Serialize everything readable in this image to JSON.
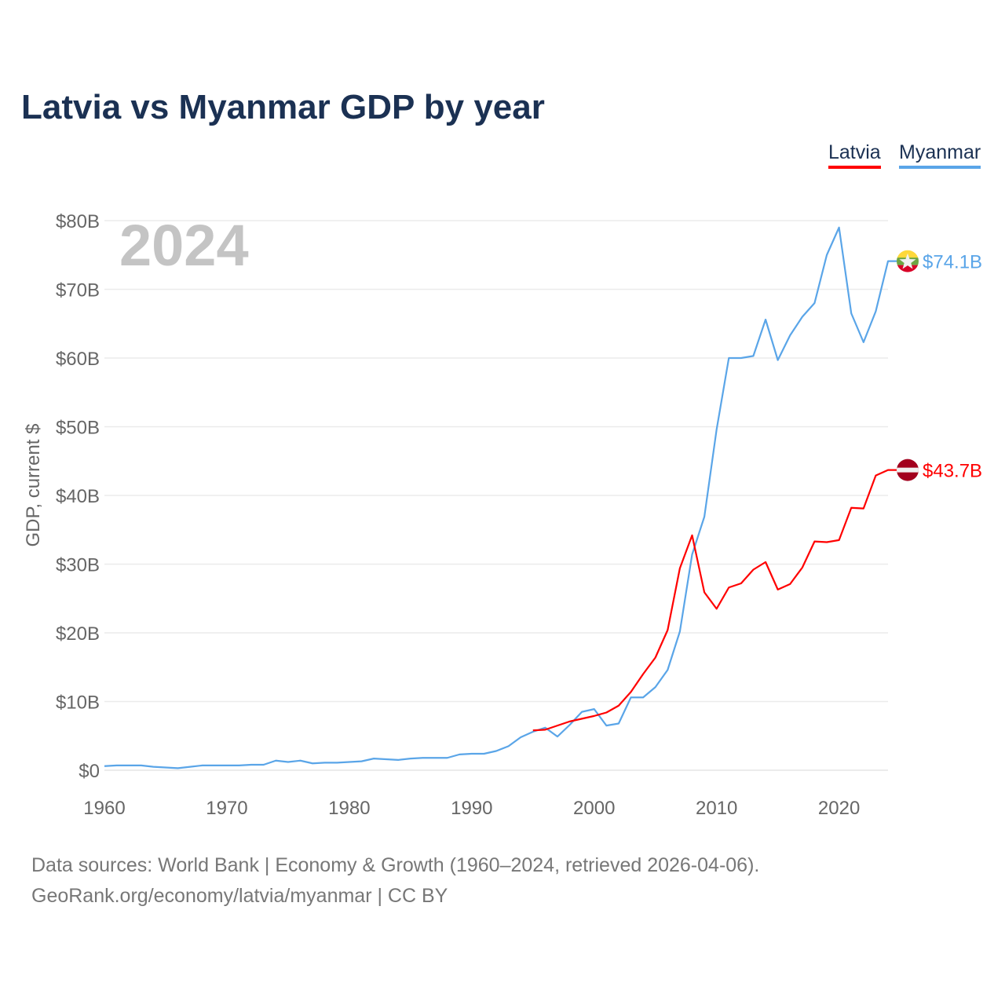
{
  "chart_data": {
    "type": "line",
    "title": "Latvia vs Myanmar GDP by year",
    "ylabel": "GDP, current $",
    "xlabel": "",
    "xlim": [
      1960,
      2024
    ],
    "ylim": [
      0,
      80
    ],
    "x_ticks": [
      "1960",
      "1970",
      "1980",
      "1990",
      "2000",
      "2010",
      "2020"
    ],
    "y_ticks": [
      "$0",
      "$10B",
      "$20B",
      "$30B",
      "$40B",
      "$50B",
      "$60B",
      "$70B",
      "$80B"
    ],
    "grid": true,
    "legend_placement": "top-right",
    "year_label": "2024",
    "series": [
      {
        "name": "Latvia",
        "color": "#ff0000",
        "end_label": "$43.7B",
        "flag": "latvia-flag",
        "x": [
          1995,
          1996,
          1997,
          1998,
          1999,
          2000,
          2001,
          2002,
          2003,
          2004,
          2005,
          2006,
          2007,
          2008,
          2009,
          2010,
          2011,
          2012,
          2013,
          2014,
          2015,
          2016,
          2017,
          2018,
          2019,
          2020,
          2021,
          2022,
          2023,
          2024
        ],
        "values": [
          5.8,
          5.9,
          6.5,
          7.1,
          7.5,
          7.9,
          8.4,
          9.4,
          11.4,
          14.0,
          16.4,
          20.4,
          29.4,
          34.2,
          25.9,
          23.5,
          26.6,
          27.2,
          29.2,
          30.3,
          26.3,
          27.1,
          29.5,
          33.3,
          33.2,
          33.5,
          38.2,
          38.1,
          42.9,
          43.7
        ]
      },
      {
        "name": "Myanmar",
        "color": "#5aa5e8",
        "end_label": "$74.1B",
        "flag": "myanmar-flag",
        "x": [
          1960,
          1961,
          1962,
          1963,
          1964,
          1965,
          1966,
          1967,
          1968,
          1969,
          1970,
          1971,
          1972,
          1973,
          1974,
          1975,
          1976,
          1977,
          1978,
          1979,
          1980,
          1981,
          1982,
          1983,
          1984,
          1985,
          1986,
          1987,
          1988,
          1989,
          1990,
          1991,
          1992,
          1993,
          1994,
          1995,
          1996,
          1997,
          1998,
          1999,
          2000,
          2001,
          2002,
          2003,
          2004,
          2005,
          2006,
          2007,
          2008,
          2009,
          2010,
          2011,
          2012,
          2013,
          2014,
          2015,
          2016,
          2017,
          2018,
          2019,
          2020,
          2021,
          2022,
          2023,
          2024
        ],
        "values": [
          0.6,
          0.7,
          0.7,
          0.7,
          0.5,
          0.4,
          0.3,
          0.5,
          0.7,
          0.7,
          0.7,
          0.7,
          0.8,
          0.8,
          1.4,
          1.2,
          1.4,
          1.0,
          1.1,
          1.1,
          1.2,
          1.3,
          1.7,
          1.6,
          1.5,
          1.7,
          1.8,
          1.8,
          1.8,
          2.3,
          2.4,
          2.4,
          2.8,
          3.5,
          4.8,
          5.6,
          6.2,
          4.9,
          6.6,
          8.5,
          8.9,
          6.5,
          6.8,
          10.6,
          10.6,
          12.1,
          14.6,
          20.2,
          31.4,
          36.9,
          49.6,
          60.0,
          60.0,
          60.3,
          65.6,
          59.7,
          63.3,
          66.0,
          68.0,
          75.0,
          79.0,
          66.5,
          62.3,
          66.8,
          74.1
        ]
      }
    ]
  },
  "footer": {
    "line1": "Data sources: World Bank | Economy & Growth (1960–2024, retrieved 2026-04-06).",
    "line2": "GeoRank.org/economy/latvia/myanmar | CC BY"
  }
}
